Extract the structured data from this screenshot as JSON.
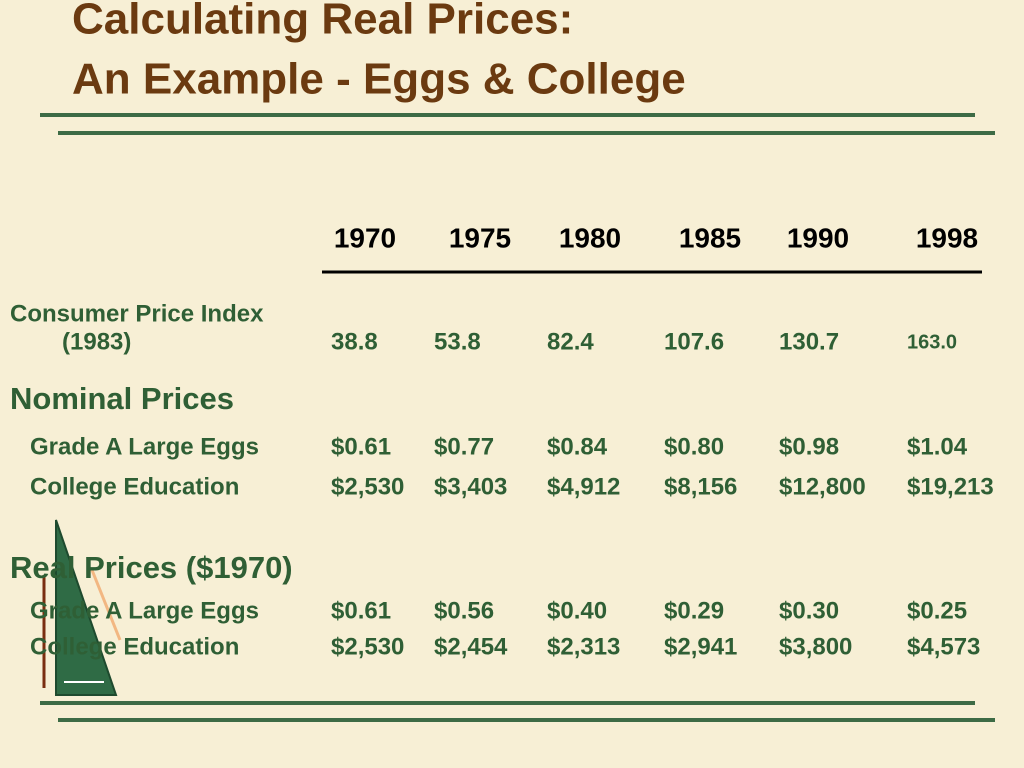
{
  "header": {
    "title": [
      "Calculating Real Prices:",
      "An Example - Eggs & College"
    ]
  },
  "table": {
    "years": [
      "1970",
      "1975",
      "1980",
      "1985",
      "1990",
      "1998"
    ],
    "cpi": {
      "label": "Consumer Price Index",
      "sublabel": "(1983)",
      "values": [
        "38.8",
        "53.8",
        "82.4",
        "107.6",
        "130.7",
        "163.0"
      ]
    },
    "sections": [
      {
        "title": "Nominal Prices",
        "rows": [
          {
            "label": "Grade A Large Eggs",
            "values": [
              "$0.61",
              "$0.77",
              "$0.84",
              "$0.80",
              "$0.98",
              "$1.04"
            ]
          },
          {
            "label": "College Education",
            "values": [
              "$2,530",
              "$3,403",
              "$4,912",
              "$8,156",
              "$12,800",
              "$19,213"
            ]
          }
        ]
      },
      {
        "title": "Real Prices ($1970)",
        "rows": [
          {
            "label": "Grade A Large Eggs",
            "values": [
              "$0.61",
              "$0.56",
              "$0.40",
              "$0.29",
              "$0.30",
              "$0.25"
            ]
          },
          {
            "label": "College Education",
            "values": [
              "$2,530",
              "$2,454",
              "$2,313",
              "$2,941",
              "$3,800",
              "$4,573"
            ]
          }
        ]
      }
    ]
  }
}
